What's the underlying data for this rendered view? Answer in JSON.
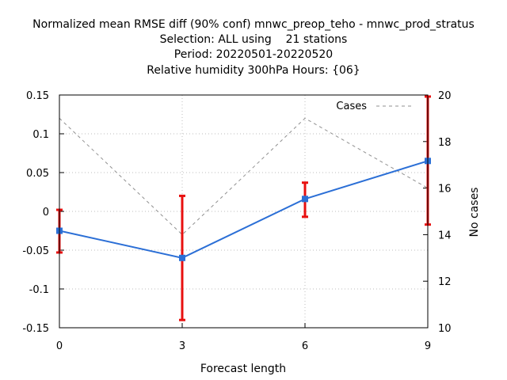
{
  "chart_data": {
    "type": "line",
    "title_lines": [
      "Normalized mean RMSE diff (90% conf) mnwc_preop_teho - mnwc_prod_stratus",
      "Selection: ALL using    21 stations",
      "Period: 20220501-20220520",
      "Relative humidity 300hPa   Hours: {06}"
    ],
    "xlabel": "Forecast length",
    "ylabel_right": "No cases",
    "x": [
      0,
      3,
      6,
      9
    ],
    "xlim": [
      0,
      9
    ],
    "ylim": [
      -0.15,
      0.15
    ],
    "y2lim": [
      10,
      20
    ],
    "x_ticks": [
      "0",
      "3",
      "6",
      "9"
    ],
    "y_ticks": [
      "0.15",
      "0.1",
      "0.05",
      "0",
      "-0.05",
      "-0.1",
      "-0.15"
    ],
    "y2_ticks": [
      "20",
      "18",
      "16",
      "14",
      "12",
      "10"
    ],
    "grid": true,
    "legend_position": "top-right",
    "series": [
      {
        "axis": "left",
        "values": [
          -0.025,
          -0.06,
          0.016,
          0.065
        ],
        "error_low": [
          -0.053,
          -0.14,
          -0.007,
          -0.017
        ],
        "error_high": [
          0.002,
          0.02,
          0.037,
          0.148
        ],
        "color": "#2b6fd6",
        "error_color": "#e8100f"
      },
      {
        "name": "Cases",
        "axis": "right",
        "values": [
          19,
          14,
          19,
          16
        ],
        "color": "#909090",
        "dashed": true
      }
    ]
  }
}
